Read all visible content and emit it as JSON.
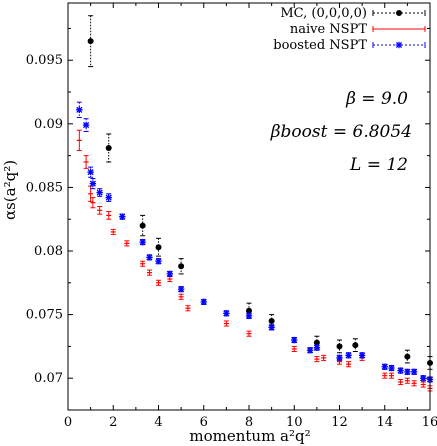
{
  "chart_data": {
    "type": "scatter",
    "xlabel": "momentum a²q²",
    "ylabel": "αs(a²q²)",
    "xlim": [
      0,
      16
    ],
    "ylim": [
      0.0675,
      0.0995
    ],
    "x_ticks": [
      "0",
      "2",
      "4",
      "6",
      "8",
      "10",
      "12",
      "14",
      "16"
    ],
    "y_ticks": [
      "0.07",
      "0.075",
      "0.08",
      "0.085",
      "0.09",
      "0.095"
    ],
    "legend_position": "top-right",
    "annotations": {
      "beta": "β = 9.0",
      "beta_boost": "βboost = 6.8054",
      "L": "L = 12"
    },
    "series": [
      {
        "name": "MC, (0,0,0,0)",
        "color": "#000000",
        "marker": "circle",
        "points": [
          {
            "x": 1.0,
            "y": 0.0965,
            "err": 0.002
          },
          {
            "x": 1.8,
            "y": 0.0881,
            "err": 0.0011
          },
          {
            "x": 3.3,
            "y": 0.082,
            "err": 0.0008
          },
          {
            "x": 4.0,
            "y": 0.0803,
            "err": 0.0007
          },
          {
            "x": 5.0,
            "y": 0.0788,
            "err": 0.0006
          },
          {
            "x": 8.0,
            "y": 0.0753,
            "err": 0.0006
          },
          {
            "x": 9.0,
            "y": 0.0745,
            "err": 0.0005
          },
          {
            "x": 11.0,
            "y": 0.0728,
            "err": 0.0005
          },
          {
            "x": 12.0,
            "y": 0.0725,
            "err": 0.0005
          },
          {
            "x": 12.7,
            "y": 0.0726,
            "err": 0.0005
          },
          {
            "x": 15.0,
            "y": 0.0717,
            "err": 0.0005
          },
          {
            "x": 16.0,
            "y": 0.0712,
            "err": 0.0005
          }
        ]
      },
      {
        "name": "naive NSPT",
        "color": "#ff0000",
        "marker": "bar",
        "points": [
          {
            "x": 0.5,
            "y": 0.0887,
            "err": 0.0008
          },
          {
            "x": 0.8,
            "y": 0.087,
            "err": 0.0005
          },
          {
            "x": 1.0,
            "y": 0.0845,
            "err": 0.0006
          },
          {
            "x": 1.1,
            "y": 0.0838,
            "err": 0.0004
          },
          {
            "x": 1.4,
            "y": 0.0832,
            "err": 0.0003
          },
          {
            "x": 1.8,
            "y": 0.0828,
            "err": 0.0003
          },
          {
            "x": 2.0,
            "y": 0.0815,
            "err": 0.0002
          },
          {
            "x": 2.6,
            "y": 0.0806,
            "err": 0.0002
          },
          {
            "x": 3.3,
            "y": 0.079,
            "err": 0.0002
          },
          {
            "x": 3.6,
            "y": 0.0783,
            "err": 0.0002
          },
          {
            "x": 4.0,
            "y": 0.0775,
            "err": 0.0002
          },
          {
            "x": 4.5,
            "y": 0.0778,
            "err": 0.0002
          },
          {
            "x": 5.0,
            "y": 0.0764,
            "err": 0.0002
          },
          {
            "x": 5.3,
            "y": 0.0755,
            "err": 0.0002
          },
          {
            "x": 7.0,
            "y": 0.0743,
            "err": 0.0002
          },
          {
            "x": 8.0,
            "y": 0.0735,
            "err": 0.0002
          },
          {
            "x": 9.0,
            "y": 0.074,
            "err": 0.0002
          },
          {
            "x": 10.0,
            "y": 0.0723,
            "err": 0.0002
          },
          {
            "x": 11.0,
            "y": 0.0715,
            "err": 0.0002
          },
          {
            "x": 11.3,
            "y": 0.0716,
            "err": 0.0002
          },
          {
            "x": 12.0,
            "y": 0.0713,
            "err": 0.0002
          },
          {
            "x": 12.4,
            "y": 0.0711,
            "err": 0.0002
          },
          {
            "x": 13.0,
            "y": 0.0716,
            "err": 0.0002
          },
          {
            "x": 14.0,
            "y": 0.0702,
            "err": 0.0002
          },
          {
            "x": 14.3,
            "y": 0.0702,
            "err": 0.0002
          },
          {
            "x": 14.7,
            "y": 0.0697,
            "err": 0.0002
          },
          {
            "x": 15.0,
            "y": 0.0698,
            "err": 0.0002
          },
          {
            "x": 15.3,
            "y": 0.0696,
            "err": 0.0002
          },
          {
            "x": 15.7,
            "y": 0.0695,
            "err": 0.0002
          },
          {
            "x": 16.0,
            "y": 0.0692,
            "err": 0.0002
          }
        ]
      },
      {
        "name": "boosted NSPT",
        "color": "#0000ff",
        "marker": "star",
        "points": [
          {
            "x": 0.5,
            "y": 0.0911,
            "err": 0.0006
          },
          {
            "x": 0.8,
            "y": 0.0899,
            "err": 0.0005
          },
          {
            "x": 1.0,
            "y": 0.0862,
            "err": 0.0004
          },
          {
            "x": 1.1,
            "y": 0.0853,
            "err": 0.0004
          },
          {
            "x": 1.4,
            "y": 0.0846,
            "err": 0.0003
          },
          {
            "x": 1.8,
            "y": 0.0842,
            "err": 0.0003
          },
          {
            "x": 2.4,
            "y": 0.0827,
            "err": 0.0002
          },
          {
            "x": 3.3,
            "y": 0.0807,
            "err": 0.0002
          },
          {
            "x": 3.6,
            "y": 0.0795,
            "err": 0.0002
          },
          {
            "x": 4.0,
            "y": 0.0792,
            "err": 0.0002
          },
          {
            "x": 4.5,
            "y": 0.0782,
            "err": 0.0002
          },
          {
            "x": 5.0,
            "y": 0.077,
            "err": 0.0002
          },
          {
            "x": 6.0,
            "y": 0.076,
            "err": 0.0002
          },
          {
            "x": 7.0,
            "y": 0.0751,
            "err": 0.0002
          },
          {
            "x": 8.0,
            "y": 0.0749,
            "err": 0.0002
          },
          {
            "x": 9.0,
            "y": 0.074,
            "err": 0.0002
          },
          {
            "x": 10.0,
            "y": 0.073,
            "err": 0.0002
          },
          {
            "x": 10.7,
            "y": 0.0722,
            "err": 0.0002
          },
          {
            "x": 11.0,
            "y": 0.0724,
            "err": 0.0002
          },
          {
            "x": 12.0,
            "y": 0.0716,
            "err": 0.0002
          },
          {
            "x": 12.4,
            "y": 0.0718,
            "err": 0.0002
          },
          {
            "x": 13.0,
            "y": 0.0718,
            "err": 0.0002
          },
          {
            "x": 14.0,
            "y": 0.0709,
            "err": 0.0002
          },
          {
            "x": 14.3,
            "y": 0.0708,
            "err": 0.0002
          },
          {
            "x": 14.7,
            "y": 0.0706,
            "err": 0.0002
          },
          {
            "x": 15.0,
            "y": 0.0705,
            "err": 0.0002
          },
          {
            "x": 15.3,
            "y": 0.0705,
            "err": 0.0002
          },
          {
            "x": 15.7,
            "y": 0.07,
            "err": 0.0002
          },
          {
            "x": 16.0,
            "y": 0.0699,
            "err": 0.0002
          }
        ]
      }
    ]
  }
}
